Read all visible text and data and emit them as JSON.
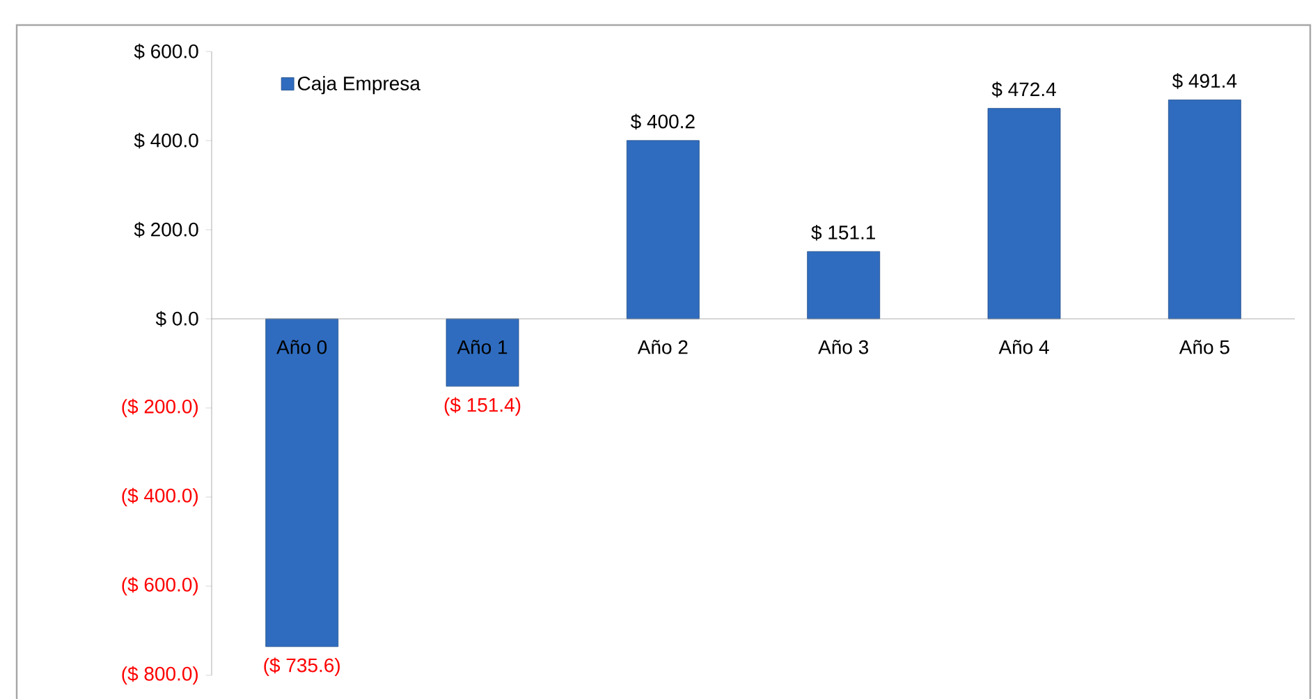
{
  "chart_data": {
    "type": "bar",
    "categories": [
      "Año 0",
      "Año 1",
      "Año 2",
      "Año 3",
      "Año 4",
      "Año 5"
    ],
    "series": [
      {
        "name": "Caja Empresa",
        "color": "#2f6cbf",
        "values": [
          -735.6,
          -151.4,
          400.2,
          151.1,
          472.4,
          491.4
        ],
        "value_labels": [
          "($ 735.6)",
          "($ 151.4)",
          "$ 400.2",
          "$ 151.1",
          "$ 472.4",
          "$ 491.4"
        ]
      }
    ],
    "ylim": [
      -800,
      600
    ],
    "yticks": [
      {
        "value": 600,
        "label": "$ 600.0"
      },
      {
        "value": 400,
        "label": "$ 400.0"
      },
      {
        "value": 200,
        "label": "$ 200.0"
      },
      {
        "value": 0,
        "label": "$ 0.0"
      },
      {
        "value": -200,
        "label": "($ 200.0)"
      },
      {
        "value": -400,
        "label": "($ 400.0)"
      },
      {
        "value": -600,
        "label": "($ 600.0)"
      },
      {
        "value": -800,
        "label": "($ 800.0)"
      }
    ],
    "legend": "top left"
  }
}
